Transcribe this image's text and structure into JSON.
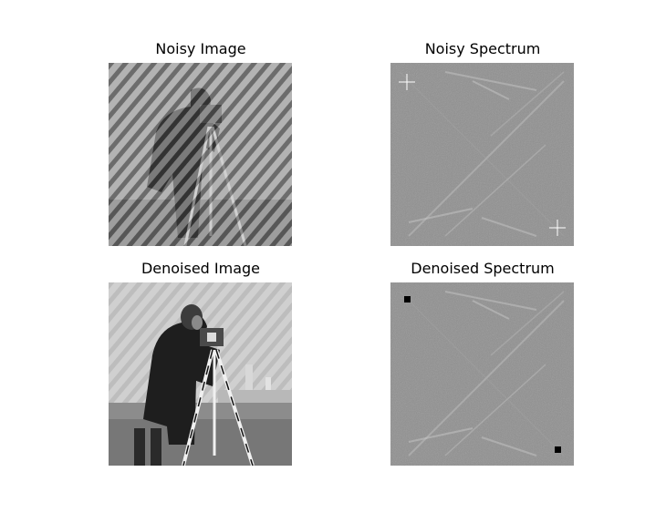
{
  "figure": {
    "panels": [
      {
        "title": "Noisy Image"
      },
      {
        "title": "Noisy Spectrum"
      },
      {
        "title": "Denoised Image"
      },
      {
        "title": "Denoised Spectrum"
      }
    ]
  }
}
